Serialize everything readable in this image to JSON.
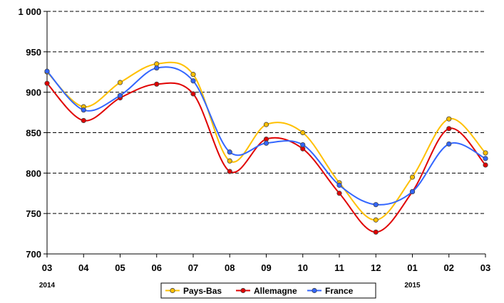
{
  "chart_data": {
    "type": "line",
    "smooth": true,
    "title": "",
    "xlabel": "",
    "ylabel": "",
    "categories": [
      "03",
      "04",
      "05",
      "06",
      "07",
      "08",
      "09",
      "10",
      "11",
      "12",
      "01",
      "02",
      "03"
    ],
    "year_labels": [
      {
        "category_index": 0,
        "label": "2014"
      },
      {
        "category_index": 10,
        "label": "2015"
      }
    ],
    "ylim": [
      700,
      1000
    ],
    "yticks": [
      700,
      750,
      800,
      850,
      900,
      950,
      1000
    ],
    "ytick_labels": [
      "700",
      "750",
      "800",
      "850",
      "900",
      "950",
      "1 000"
    ],
    "grid": {
      "horizontal": true,
      "style": "dashed"
    },
    "legend": {
      "placement": "bottom-center",
      "boxed": true
    },
    "series": [
      {
        "name": "Pays-Bas",
        "color": "#FFC000",
        "values": [
          925,
          882,
          912,
          935,
          922,
          815,
          860,
          850,
          788,
          742,
          795,
          867,
          825
        ]
      },
      {
        "name": "Allemagne",
        "color": "#E00000",
        "values": [
          911,
          865,
          893,
          910,
          898,
          802,
          842,
          830,
          775,
          727,
          777,
          855,
          810
        ]
      },
      {
        "name": "France",
        "color": "#3366FF",
        "values": [
          926,
          878,
          896,
          930,
          914,
          826,
          837,
          835,
          785,
          761,
          777,
          836,
          818
        ]
      }
    ]
  }
}
